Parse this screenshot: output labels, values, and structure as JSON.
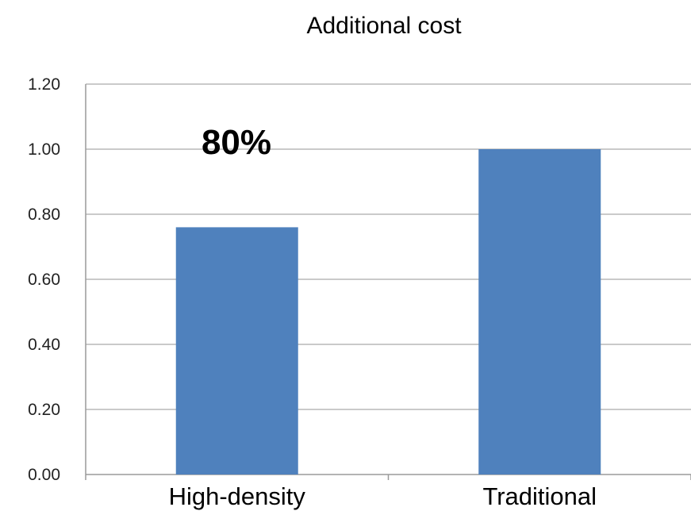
{
  "chart_data": {
    "type": "bar",
    "title": "Additional cost",
    "categories": [
      "High-density",
      "Traditional"
    ],
    "values": [
      0.76,
      1.0
    ],
    "ylim": [
      0,
      1.2
    ],
    "yticks": [
      "0.00",
      "0.20",
      "0.40",
      "0.60",
      "0.80",
      "1.00",
      "1.20"
    ],
    "annotation": "80%",
    "bar_color": "#4f81bd",
    "grid": true,
    "xlabel": "",
    "ylabel": ""
  }
}
